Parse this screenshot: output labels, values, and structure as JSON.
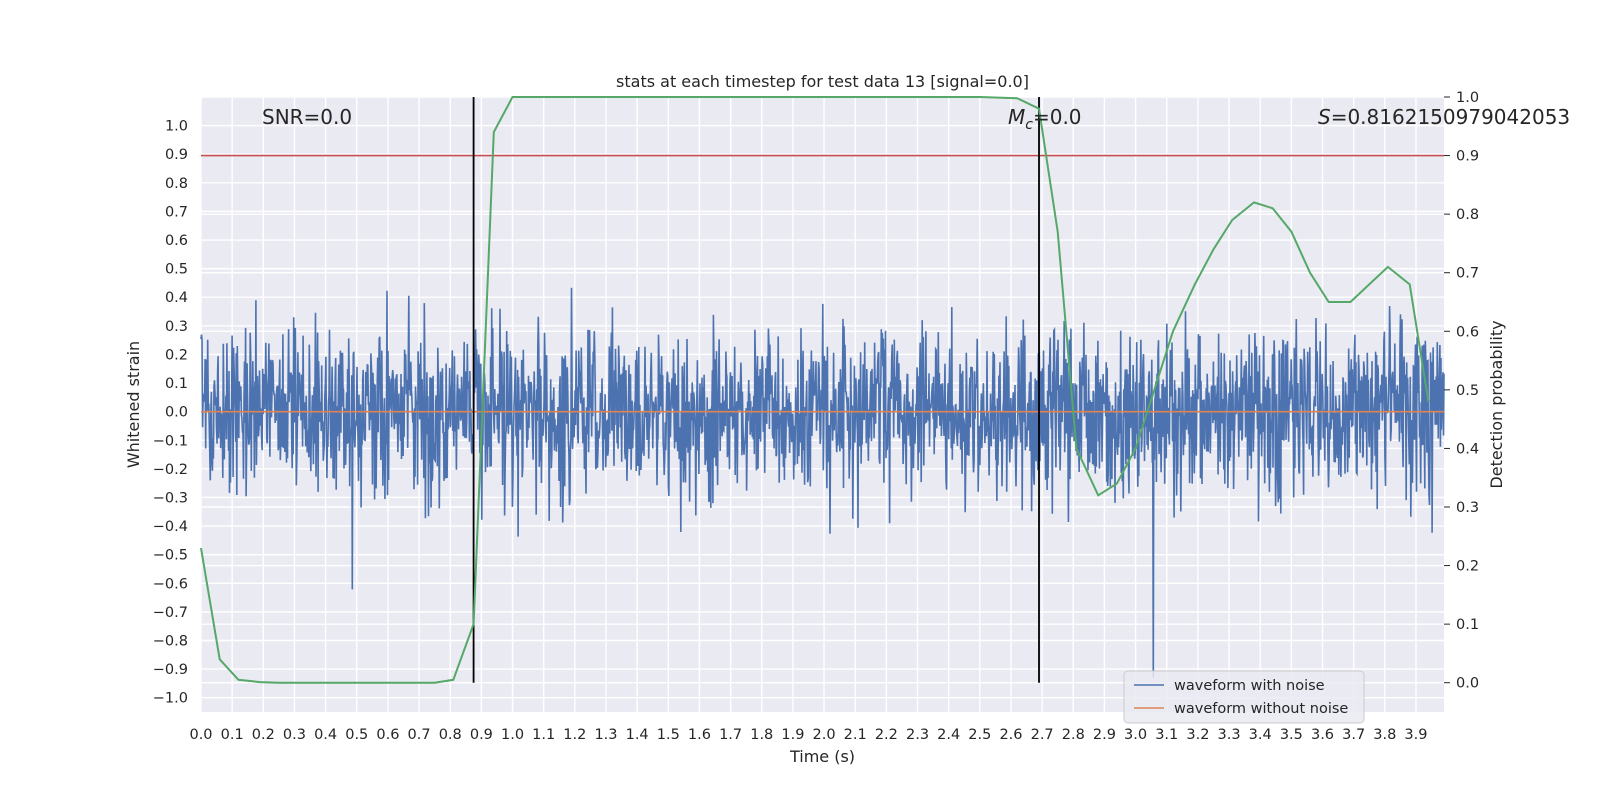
{
  "chart_data": {
    "type": "line",
    "title": "stats at each timestep for test data 13 [signal=0.0]",
    "xlabel": "Time (s)",
    "ylabel_left": "Whitened strain",
    "ylabel_right": "Detection probability",
    "xlim": [
      0.0,
      3.99
    ],
    "ylim_left": [
      -1.05,
      1.1
    ],
    "ylim_right": [
      -0.05,
      1.0
    ],
    "x_ticks": [
      "0.0",
      "0.1",
      "0.2",
      "0.3",
      "0.4",
      "0.5",
      "0.6",
      "0.7",
      "0.8",
      "0.9",
      "1.0",
      "1.1",
      "1.2",
      "1.3",
      "1.4",
      "1.5",
      "1.6",
      "1.7",
      "1.8",
      "1.9",
      "2.0",
      "2.1",
      "2.2",
      "2.3",
      "2.4",
      "2.5",
      "2.6",
      "2.7",
      "2.8",
      "2.9",
      "3.0",
      "3.1",
      "3.2",
      "3.3",
      "3.4",
      "3.5",
      "3.6",
      "3.7",
      "3.8",
      "3.9"
    ],
    "y_ticks_left": [
      "1.0",
      "0.9",
      "0.8",
      "0.7",
      "0.6",
      "0.5",
      "0.4",
      "0.3",
      "0.2",
      "0.1",
      "0.0",
      "−0.1",
      "−0.2",
      "−0.3",
      "−0.4",
      "−0.5",
      "−0.6",
      "−0.7",
      "−0.8",
      "−0.9",
      "−1.0"
    ],
    "y_ticks_right": [
      "1.0",
      "0.9",
      "0.8",
      "0.7",
      "0.6",
      "0.5",
      "0.4",
      "0.3",
      "0.2",
      "0.1",
      "0.0"
    ],
    "grid": true,
    "background": "#eaeaf2",
    "annotations": [
      {
        "text": "SNR=0.0"
      },
      {
        "text": "Mc=0.0"
      },
      {
        "text": "S=0.8162150979042053"
      }
    ],
    "threshold": {
      "axis": "right",
      "value": 0.9,
      "color": "#c44e52"
    },
    "vlines": [
      0.875,
      2.69
    ],
    "series": [
      {
        "name": "waveform with noise",
        "axis": "left",
        "color": "#4c72b0",
        "style": "noise",
        "amplitude_range": [
          -0.93,
          1.0
        ]
      },
      {
        "name": "waveform without noise",
        "axis": "left",
        "color": "#dd8452",
        "x": [
          0.0,
          3.99
        ],
        "y": [
          0.0,
          0.0
        ]
      },
      {
        "axis": "right",
        "color": "#55a868",
        "x": [
          0.0,
          0.06,
          0.12,
          0.19,
          0.25,
          0.31,
          0.38,
          0.44,
          0.5,
          0.56,
          0.62,
          0.69,
          0.75,
          0.81,
          0.875,
          0.94,
          1.0,
          1.06,
          1.25,
          1.5,
          1.75,
          2.0,
          2.25,
          2.5,
          2.62,
          2.69,
          2.75,
          2.81,
          2.88,
          2.94,
          3.0,
          3.06,
          3.12,
          3.19,
          3.25,
          3.31,
          3.38,
          3.44,
          3.5,
          3.56,
          3.62,
          3.69,
          3.75,
          3.81,
          3.88,
          3.94
        ],
        "y": [
          0.23,
          0.04,
          0.005,
          0.001,
          0.0,
          0.0,
          0.0,
          0.0,
          0.0,
          0.0,
          0.0,
          0.0,
          0.0,
          0.005,
          0.1,
          0.94,
          1.0,
          1.0,
          1.0,
          1.0,
          1.0,
          1.0,
          1.0,
          1.0,
          0.998,
          0.98,
          0.77,
          0.4,
          0.32,
          0.34,
          0.4,
          0.5,
          0.6,
          0.68,
          0.74,
          0.79,
          0.82,
          0.81,
          0.77,
          0.7,
          0.65,
          0.65,
          0.68,
          0.71,
          0.68,
          0.48
        ]
      }
    ]
  }
}
